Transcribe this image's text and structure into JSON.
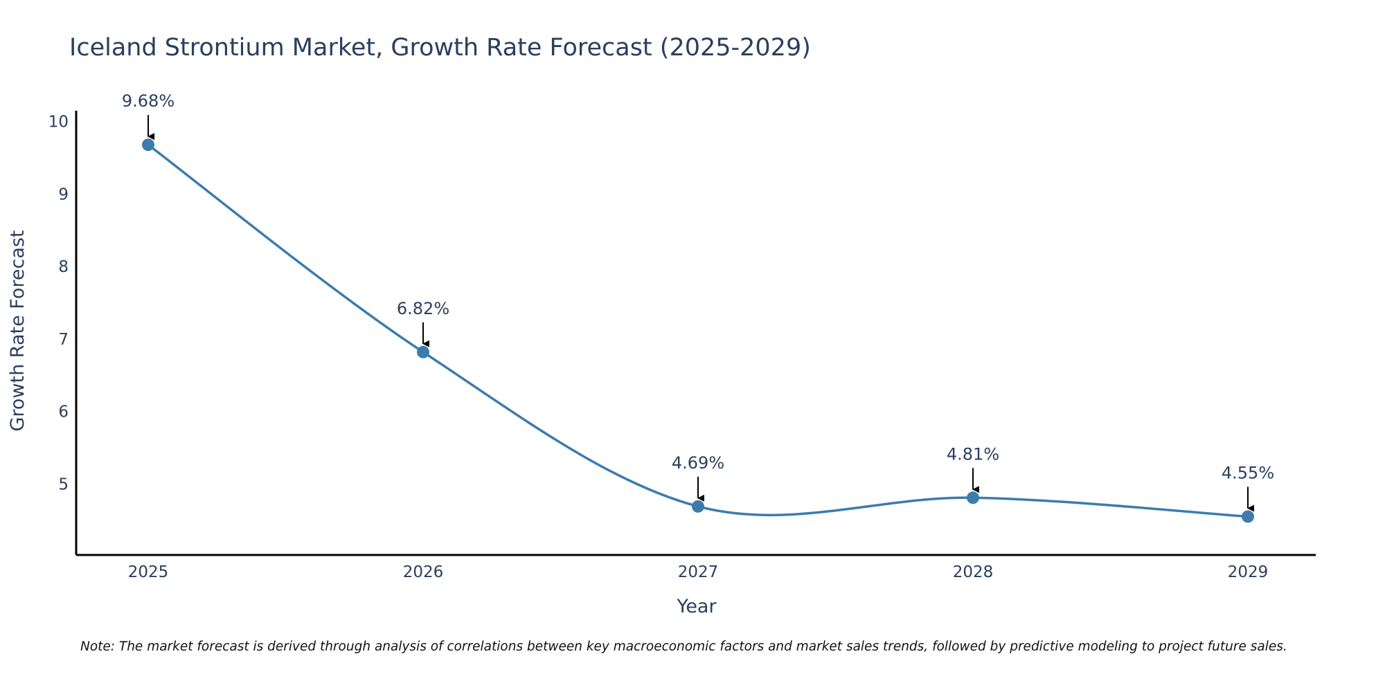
{
  "chart_data": {
    "type": "line",
    "title": "Iceland Strontium Market, Growth Rate Forecast (2025-2029)",
    "xlabel": "Year",
    "ylabel": "Growth Rate Forecast",
    "categories": [
      "2025",
      "2026",
      "2027",
      "2028",
      "2029"
    ],
    "values": [
      9.68,
      6.82,
      4.69,
      4.81,
      4.55
    ],
    "data_labels": [
      "9.68%",
      "6.82%",
      "4.69%",
      "4.81%",
      "4.55%"
    ],
    "yticks": [
      5,
      6,
      7,
      8,
      9,
      10
    ],
    "ylim": [
      4.02,
      10.15
    ],
    "grid": false,
    "legend": "none",
    "line_shape": "spline",
    "colors": {
      "line": "#3b7cad",
      "marker": "#3b7cad",
      "axis": "#000000",
      "text": "#2a3f5f",
      "arrow": "#000000"
    },
    "note": "Note: The market forecast is derived through analysis of correlations between key macroeconomic factors and market sales trends, followed by predictive modeling to project future sales."
  }
}
